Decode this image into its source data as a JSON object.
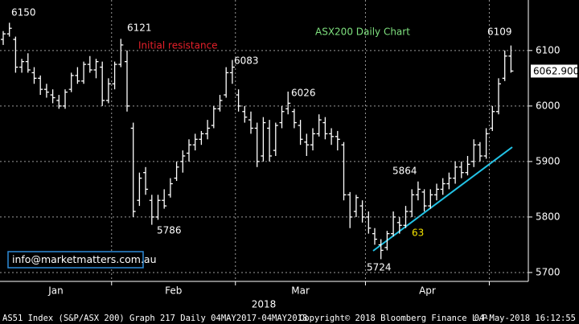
{
  "chart_data": {
    "type": "ohlc",
    "title": "ASX200 Daily Chart",
    "categories": [
      "Jan",
      "Jan",
      "Jan",
      "Jan",
      "Jan",
      "Jan",
      "Jan",
      "Jan",
      "Jan",
      "Jan",
      "Jan",
      "Jan",
      "Jan",
      "Jan",
      "Jan",
      "Jan",
      "Jan",
      "Jan",
      "Feb",
      "Feb",
      "Feb",
      "Feb",
      "Feb",
      "Feb",
      "Feb",
      "Feb",
      "Feb",
      "Feb",
      "Feb",
      "Feb",
      "Feb",
      "Feb",
      "Feb",
      "Feb",
      "Feb",
      "Feb",
      "Feb",
      "Feb",
      "Mar",
      "Mar",
      "Mar",
      "Mar",
      "Mar",
      "Mar",
      "Mar",
      "Mar",
      "Mar",
      "Mar",
      "Mar",
      "Mar",
      "Mar",
      "Mar",
      "Mar",
      "Mar",
      "Mar",
      "Mar",
      "Mar",
      "Mar",
      "Mar",
      "Apr",
      "Apr",
      "Apr",
      "Apr",
      "Apr",
      "Apr",
      "Apr",
      "Apr",
      "Apr",
      "Apr",
      "Apr",
      "Apr",
      "Apr",
      "Apr",
      "Apr",
      "Apr",
      "Apr",
      "Apr",
      "Apr",
      "Apr",
      null,
      null,
      null,
      null
    ],
    "x_year": "2018",
    "open": [
      6120,
      6130,
      6120,
      6070,
      6080,
      6060,
      6050,
      6030,
      6020,
      6010,
      6000,
      6030,
      6055,
      6045,
      6075,
      6065,
      6070,
      6010,
      6040,
      6075,
      6080,
      5960,
      5830,
      5880,
      5830,
      5800,
      5830,
      5840,
      5870,
      5900,
      5915,
      5930,
      5940,
      5950,
      5965,
      5995,
      6020,
      6060,
      6020,
      5990,
      5975,
      5960,
      5910,
      5960,
      5920,
      5970,
      5995,
      5990,
      5965,
      5935,
      5930,
      5950,
      5970,
      5950,
      5945,
      5930,
      5840,
      5810,
      5820,
      5800,
      5770,
      5750,
      5745,
      5770,
      5790,
      5785,
      5810,
      5840,
      5845,
      5820,
      5840,
      5850,
      5860,
      5870,
      5890,
      5880,
      5900,
      5930,
      5910,
      5960,
      5990,
      6050,
      6090
    ],
    "high": [
      6135,
      6150,
      6125,
      6085,
      6095,
      6070,
      6055,
      6040,
      6030,
      6020,
      6030,
      6060,
      6070,
      6080,
      6090,
      6085,
      6080,
      6050,
      6080,
      6121,
      6100,
      5970,
      5880,
      5890,
      5840,
      5840,
      5850,
      5870,
      5900,
      5920,
      5940,
      5950,
      5955,
      5975,
      6000,
      6020,
      6070,
      6083,
      6030,
      6000,
      5990,
      5970,
      5980,
      5975,
      5970,
      6000,
      6026,
      5995,
      5975,
      5950,
      5960,
      5985,
      5980,
      5960,
      5955,
      5935,
      5845,
      5840,
      5830,
      5810,
      5780,
      5760,
      5775,
      5810,
      5800,
      5820,
      5850,
      5864,
      5850,
      5850,
      5860,
      5870,
      5880,
      5900,
      5900,
      5910,
      5940,
      5935,
      5960,
      6000,
      6050,
      6100,
      6109
    ],
    "low": [
      6110,
      6125,
      6060,
      6060,
      6060,
      6040,
      6020,
      6015,
      6005,
      5995,
      5995,
      6025,
      6040,
      6040,
      6060,
      6050,
      6000,
      6005,
      6030,
      6070,
      5990,
      5800,
      5820,
      5840,
      5786,
      5795,
      5815,
      5835,
      5865,
      5880,
      5900,
      5920,
      5930,
      5940,
      5960,
      5990,
      6015,
      6040,
      5990,
      5970,
      5950,
      5890,
      5900,
      5900,
      5910,
      5960,
      5985,
      5960,
      5930,
      5910,
      5920,
      5945,
      5940,
      5930,
      5920,
      5830,
      5780,
      5800,
      5790,
      5770,
      5750,
      5724,
      5740,
      5765,
      5770,
      5780,
      5800,
      5830,
      5810,
      5815,
      5830,
      5840,
      5850,
      5860,
      5870,
      5875,
      5890,
      5900,
      5905,
      5955,
      5985,
      6045,
      6060
    ],
    "close": [
      6130,
      6140,
      6070,
      6080,
      6065,
      6050,
      6030,
      6025,
      6015,
      6000,
      6025,
      6055,
      6045,
      6075,
      6065,
      6080,
      6010,
      6040,
      6075,
      6110,
      6000,
      5810,
      5870,
      5850,
      5800,
      5830,
      5820,
      5860,
      5890,
      5910,
      5930,
      5940,
      5950,
      5960,
      5995,
      6010,
      6060,
      6070,
      6000,
      5980,
      5960,
      5900,
      5970,
      5910,
      5965,
      5990,
      6005,
      5970,
      5940,
      5930,
      5950,
      5975,
      5950,
      5945,
      5940,
      5840,
      5800,
      5835,
      5800,
      5780,
      5760,
      5740,
      5770,
      5800,
      5785,
      5810,
      5840,
      5850,
      5820,
      5840,
      5850,
      5860,
      5870,
      5890,
      5880,
      5895,
      5930,
      5910,
      5950,
      5990,
      6040,
      6090,
      6063
    ],
    "last_price": {
      "value": 6062.9,
      "label": "6062.900"
    },
    "ylim": [
      5684,
      6191
    ],
    "yticks": [
      5700,
      5800,
      5900,
      6000,
      6100
    ],
    "grid": true,
    "color": "#ffffff",
    "annotations": [
      {
        "text": "6150",
        "color": "#ffffff"
      },
      {
        "text": "6121",
        "color": "#ffffff"
      },
      {
        "text": "Initial resistance",
        "color": "#e8202a"
      },
      {
        "text": "6083",
        "color": "#ffffff"
      },
      {
        "text": "ASX200 Daily Chart",
        "color": "#7ee07e"
      },
      {
        "text": "6026",
        "color": "#ffffff"
      },
      {
        "text": "6109",
        "color": "#ffffff"
      },
      {
        "text": "5864",
        "color": "#ffffff"
      },
      {
        "text": "5786",
        "color": "#ffffff"
      },
      {
        "text": "63",
        "color": "#f5e400"
      },
      {
        "text": "5724",
        "color": "#ffffff"
      }
    ],
    "watermark": "info@marketmatters.com.au",
    "footer": [
      "AS51 Index (S&P/ASX 200) Graph 217  Daily 04MAY2017-04MAY2018",
      "Copyright© 2018 Bloomberg Finance L.P.",
      "04-May-2018 16:12:55"
    ]
  }
}
